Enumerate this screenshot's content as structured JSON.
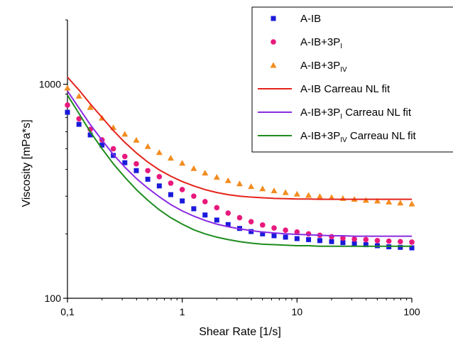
{
  "chart_data": {
    "type": "scatter",
    "xlabel": "Shear Rate [1/s]",
    "ylabel": "Viscosity [mPa*s]",
    "xscale": "log",
    "yscale": "log",
    "xlim": [
      0.1,
      100
    ],
    "ylim": [
      100,
      2000
    ],
    "x_ticks": [
      {
        "value": 0.1,
        "label": "0,1"
      },
      {
        "value": 1,
        "label": "1"
      },
      {
        "value": 10,
        "label": "10"
      },
      {
        "value": 100,
        "label": "100"
      }
    ],
    "y_ticks": [
      {
        "value": 100,
        "label": "100"
      },
      {
        "value": 1000,
        "label": "1000"
      }
    ],
    "grid": false,
    "legend_position": "top-right",
    "x": [
      0.1,
      0.126,
      0.158,
      0.2,
      0.251,
      0.316,
      0.398,
      0.501,
      0.631,
      0.794,
      1,
      1.26,
      1.58,
      2,
      2.51,
      3.16,
      3.98,
      5.01,
      6.31,
      7.94,
      10,
      12.6,
      15.8,
      20,
      25.1,
      31.6,
      39.8,
      50.1,
      63.1,
      79.4,
      100
    ],
    "series": [
      {
        "name": "A-IB",
        "label_main": "A-IB",
        "label_sub": "",
        "label_tail": "",
        "kind": "marker",
        "marker": "square",
        "color": "#1a1adb",
        "values": [
          740,
          650,
          580,
          520,
          465,
          430,
          395,
          360,
          335,
          305,
          285,
          262,
          245,
          232,
          221,
          212,
          205,
          200,
          196,
          193,
          190,
          188,
          186,
          184,
          182,
          180,
          178,
          176,
          174,
          173,
          172
        ]
      },
      {
        "name": "A-IB+3PI",
        "label_main": "A-IB+3P",
        "label_sub": "I",
        "label_tail": "",
        "kind": "marker",
        "marker": "circle",
        "color": "#e8197d",
        "values": [
          800,
          690,
          615,
          550,
          500,
          460,
          425,
          395,
          370,
          345,
          322,
          300,
          283,
          265,
          250,
          238,
          228,
          220,
          213,
          208,
          204,
          200,
          197,
          194,
          191,
          189,
          188,
          186,
          185,
          184,
          183
        ]
      },
      {
        "name": "A-IB+3PIV",
        "label_main": "A-IB+3P",
        "label_sub": "IV",
        "label_tail": "",
        "kind": "marker",
        "marker": "triangle",
        "color": "#f28c1f",
        "values": [
          960,
          880,
          780,
          695,
          628,
          585,
          548,
          512,
          480,
          452,
          428,
          404,
          385,
          368,
          355,
          343,
          333,
          325,
          318,
          312,
          307,
          303,
          299,
          296,
          293,
          290,
          287,
          285,
          282,
          279,
          276
        ]
      },
      {
        "name": "A-IB Carreau NL fit",
        "label_main": "A-IB",
        "label_sub": "",
        "label_tail": " Carreau NL fit",
        "kind": "line",
        "color": "#e4231b",
        "values": [
          1080,
          940,
          810,
          700,
          608,
          535,
          478,
          433,
          398,
          372,
          351,
          335,
          322,
          312,
          305,
          300,
          297,
          295,
          293,
          292,
          291,
          291,
          290,
          290,
          290,
          290,
          290,
          290,
          290,
          290,
          290
        ]
      },
      {
        "name": "A-IB+3PI Carreau NL fit",
        "label_main": "A-IB+3P",
        "label_sub": "I",
        "label_tail": " Carreau NL fit",
        "kind": "line",
        "color": "#8a2be2",
        "values": [
          930,
          775,
          648,
          548,
          470,
          410,
          363,
          327,
          298,
          274,
          256,
          242,
          231,
          222,
          216,
          211,
          207,
          204,
          202,
          200,
          199,
          198,
          197,
          196,
          196,
          195,
          195,
          195,
          195,
          195,
          195
        ]
      },
      {
        "name": "A-IB+3PIV Carreau NL fit",
        "label_main": "A-IB+3P",
        "label_sub": "IV",
        "label_tail": " Carreau NL fit",
        "kind": "line",
        "color": "#1e8c1e",
        "values": [
          890,
          730,
          600,
          500,
          425,
          368,
          322,
          287,
          259,
          238,
          222,
          209,
          200,
          193,
          188,
          184,
          181,
          179,
          178,
          177,
          176,
          176,
          175,
          175,
          175,
          175,
          175,
          175,
          175,
          175,
          175
        ]
      }
    ]
  }
}
